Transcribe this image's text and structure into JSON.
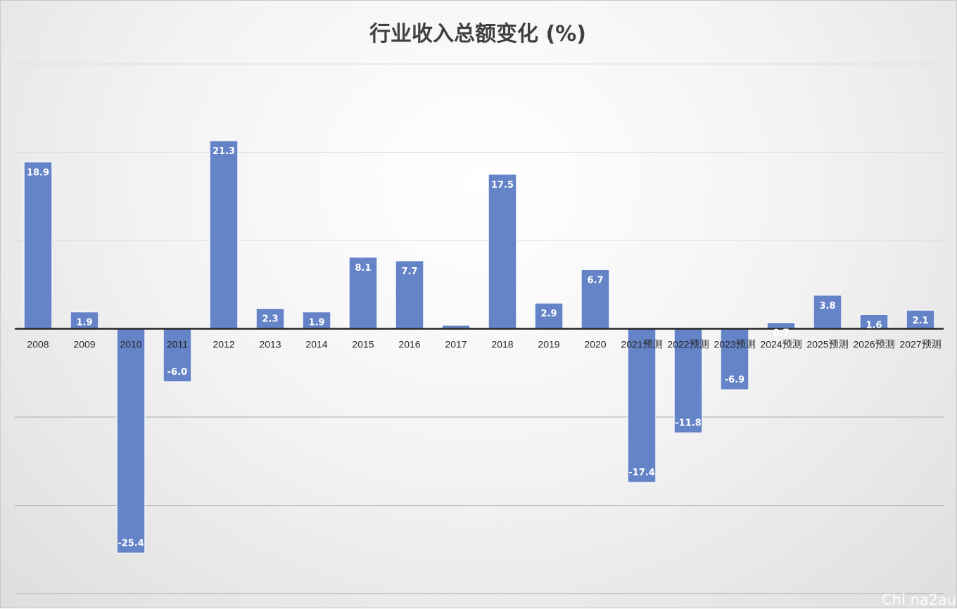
{
  "watermark": "Chi na2au",
  "chart_data": {
    "type": "bar",
    "title": "行业收入总额变化 (%)",
    "categories": [
      "2008",
      "2009",
      "2010",
      "2011",
      "2012",
      "2013",
      "2014",
      "2015",
      "2016",
      "2017",
      "2018",
      "2019",
      "2020",
      "2021预测",
      "2022预测",
      "2023预测",
      "2024预测",
      "2025预测",
      "2026预测",
      "2027预测"
    ],
    "series": [
      {
        "values": [
          18.9,
          1.9,
          -25.4,
          -6.0,
          21.3,
          2.3,
          1.9,
          8.1,
          7.7,
          0.4,
          17.5,
          2.9,
          6.7,
          -17.4,
          -11.8,
          -6.9,
          0.7,
          3.8,
          1.6,
          2.1
        ]
      }
    ],
    "ylim": [
      -30,
      30
    ],
    "gridlines": [
      -30,
      -20,
      -10,
      10,
      20,
      30
    ],
    "grid": true,
    "legend": "none",
    "bar_color": "#6584c8"
  }
}
